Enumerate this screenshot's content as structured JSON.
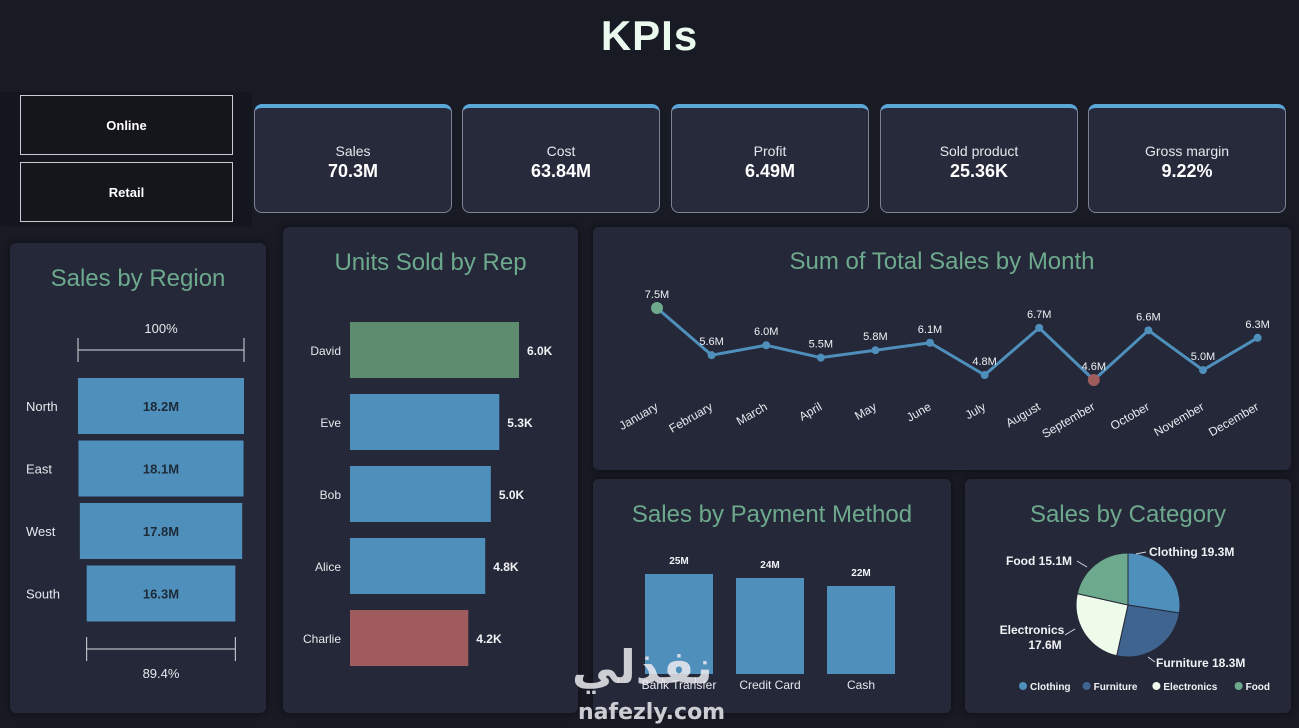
{
  "page": {
    "title": "KPIs"
  },
  "slicer": {
    "items": [
      "Online",
      "Retail"
    ]
  },
  "kpis": [
    {
      "label": "Sales",
      "value": "70.3M"
    },
    {
      "label": "Cost",
      "value": "63.84M"
    },
    {
      "label": "Profit",
      "value": "6.49M"
    },
    {
      "label": "Sold product",
      "value": "25.36K"
    },
    {
      "label": "Gross margin",
      "value": "9.22%"
    }
  ],
  "colors": {
    "bar_blue": "#4f8fbb",
    "green": "#5e8c6f",
    "red": "#a05c5c",
    "title_green": "#6da98d"
  },
  "chart_data": [
    {
      "type": "bar",
      "title": "Sales by Region",
      "orientation": "horizontal",
      "categories": [
        "North",
        "East",
        "West",
        "South"
      ],
      "values": [
        18.2,
        18.1,
        17.8,
        16.3
      ],
      "labels": [
        "18.2M",
        "18.1M",
        "17.8M",
        "16.3M"
      ],
      "top_annotation": "100%",
      "bottom_annotation": "89.4%"
    },
    {
      "type": "bar",
      "title": "Units Sold by Rep",
      "orientation": "horizontal",
      "categories": [
        "David",
        "Eve",
        "Bob",
        "Alice",
        "Charlie"
      ],
      "values": [
        6.0,
        5.3,
        5.0,
        4.8,
        4.2
      ],
      "labels": [
        "6.0K",
        "5.3K",
        "5.0K",
        "4.8K",
        "4.2K"
      ],
      "highlight": {
        "max": "David",
        "min": "Charlie"
      }
    },
    {
      "type": "line",
      "title": "Sum of Total Sales by Month",
      "x": [
        "January",
        "February",
        "March",
        "April",
        "May",
        "June",
        "July",
        "August",
        "September",
        "October",
        "November",
        "December"
      ],
      "values": [
        7.5,
        5.6,
        6.0,
        5.5,
        5.8,
        6.1,
        4.8,
        6.7,
        4.6,
        6.6,
        5.0,
        6.3
      ],
      "labels": [
        "7.5M",
        "5.6M",
        "6.0M",
        "5.5M",
        "5.8M",
        "6.1M",
        "4.8M",
        "6.7M",
        "4.6M",
        "6.6M",
        "5.0M",
        "6.3M"
      ],
      "highlight": {
        "max": "January",
        "min": "September"
      }
    },
    {
      "type": "bar",
      "title": "Sales by Payment Method",
      "categories": [
        "Bank Transfer",
        "Credit Card",
        "Cash"
      ],
      "values": [
        25,
        24,
        22
      ],
      "labels": [
        "25M",
        "24M",
        "22M"
      ]
    },
    {
      "type": "pie",
      "title": "Sales by Category",
      "categories": [
        "Clothing",
        "Furniture",
        "Electronics",
        "Food"
      ],
      "values": [
        19.3,
        18.3,
        17.6,
        15.1
      ],
      "slice_labels": [
        "Clothing 19.3M",
        "Furniture 18.3M",
        "Electronics 17.6M",
        "Food 15.1M"
      ],
      "colors": [
        "#4f8fbb",
        "#3f6490",
        "#eefbea",
        "#6da98d"
      ],
      "legend": [
        "Clothing",
        "Furniture",
        "Electronics",
        "Food"
      ]
    }
  ],
  "watermark": {
    "arabic": "نفذلي",
    "latin": "nafezly.com"
  }
}
